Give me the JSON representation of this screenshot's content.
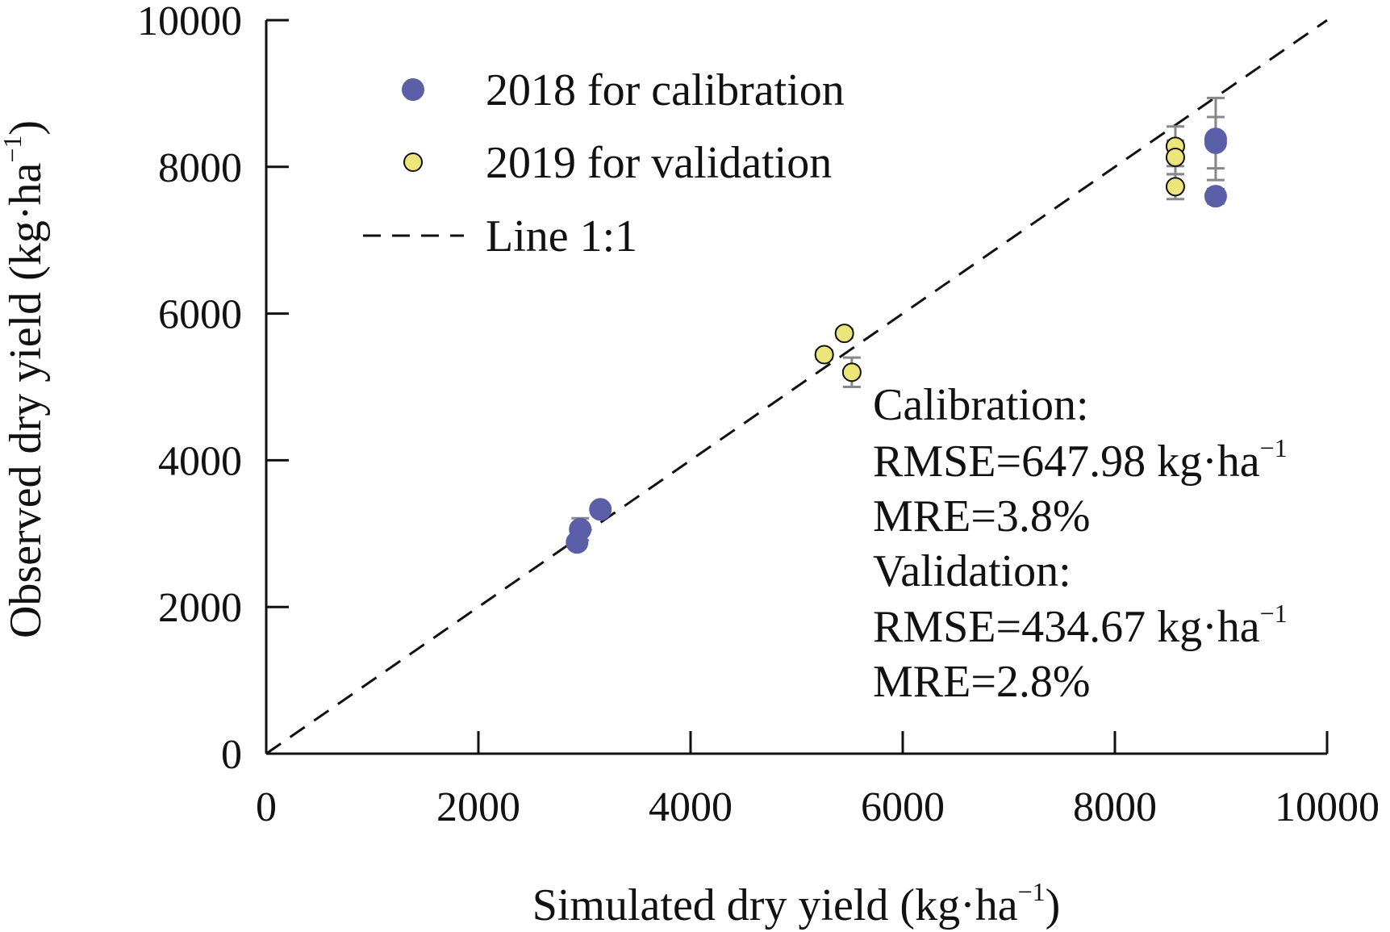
{
  "chart_data": {
    "type": "scatter",
    "xlabel": "Simulated dry yield (kg·ha",
    "ylabel": "Observed dry yield (kg·ha",
    "unit_superscript": "−1",
    "xlim": [
      0,
      10000
    ],
    "ylim": [
      0,
      10000
    ],
    "xticks": [
      "0",
      "2000",
      "4000",
      "6000",
      "8000",
      "10000"
    ],
    "yticks": [
      "0",
      "2000",
      "4000",
      "6000",
      "8000",
      "10000"
    ],
    "grid": false,
    "legend_position": "top-left",
    "series": [
      {
        "name": "2018 for calibration",
        "color": "#5b5fa8",
        "points": [
          {
            "x": 2930,
            "y": 2880,
            "err": 80
          },
          {
            "x": 2960,
            "y": 3060,
            "err": 150
          },
          {
            "x": 3150,
            "y": 3330,
            "err": 80
          },
          {
            "x": 8950,
            "y": 8380,
            "err": 560
          },
          {
            "x": 8950,
            "y": 8330,
            "err": 350
          },
          {
            "x": 8950,
            "y": 7600,
            "err": 100
          }
        ]
      },
      {
        "name": "2019 for validation",
        "color": "#ece67a",
        "points": [
          {
            "x": 5260,
            "y": 5440,
            "err": 60
          },
          {
            "x": 5450,
            "y": 5730,
            "err": 60
          },
          {
            "x": 5520,
            "y": 5200,
            "err": 200
          },
          {
            "x": 8570,
            "y": 8280,
            "err": 270
          },
          {
            "x": 8570,
            "y": 8130,
            "err": 230
          },
          {
            "x": 8570,
            "y": 7730,
            "err": 170
          }
        ]
      }
    ],
    "reference_line": {
      "name": "Line 1:1",
      "x": [
        0,
        10000
      ],
      "y": [
        0,
        10000
      ],
      "style": "dashed"
    },
    "annotations": [
      "Calibration:",
      "RMSE=647.98 kg·ha",
      "MRE=3.8%",
      "Validation:",
      "RMSE=434.67 kg·ha",
      "MRE=2.8%"
    ]
  }
}
